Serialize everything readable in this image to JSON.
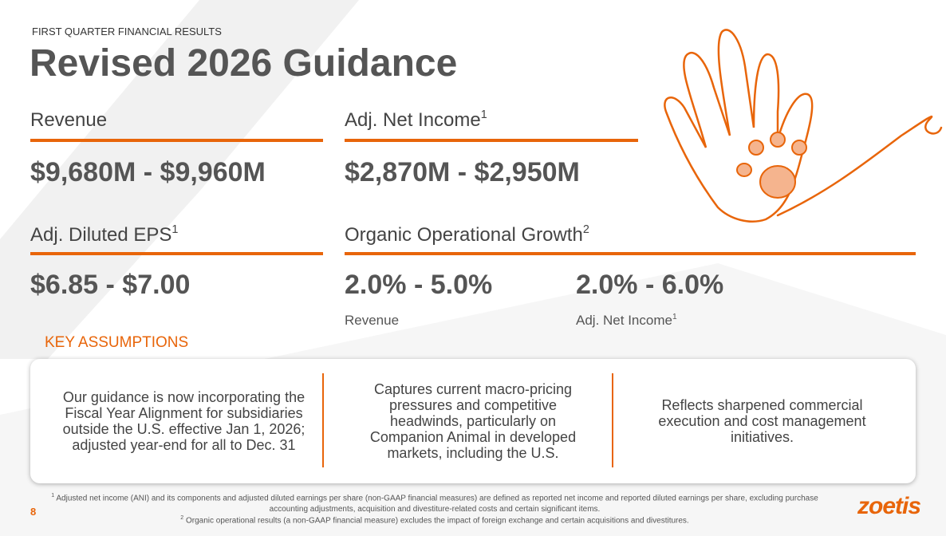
{
  "header": {
    "eyebrow": "FIRST QUARTER FINANCIAL RESULTS",
    "title": "Revised 2026 Guidance"
  },
  "metrics": [
    {
      "label": "Revenue",
      "value": "$9,680M - $9,960M"
    },
    {
      "label": "Adj. Net Income",
      "note": "1",
      "value": "$2,870M - $2,950M"
    },
    {
      "label": "Adj. Diluted EPS",
      "note": "1",
      "value": "$6.85 - $7.00"
    }
  ],
  "growth": {
    "label": "Organic Operational Growth",
    "note": "2",
    "items": [
      {
        "value": "2.0% - 5.0%",
        "label": "Revenue"
      },
      {
        "value": "2.0% - 6.0%",
        "label": "Adj. Net Income",
        "note": "1"
      }
    ]
  },
  "assumptions": {
    "title": "KEY ASSUMPTIONS",
    "items": [
      "Our guidance is now incorporating the Fiscal Year Alignment for subsidiaries outside the U.S. effective Jan 1, 2026; adjusted year-end for all to Dec. 31",
      "Captures current macro-pricing pressures and competitive headwinds, particularly on Companion Animal in developed markets, including the U.S.",
      "Reflects sharpened commercial execution and cost management initiatives."
    ]
  },
  "footnotes": [
    {
      "mark": "1",
      "text": "Adjusted net income (ANI) and its components and adjusted diluted earnings per share (non-GAAP financial measures) are defined as reported net income and reported diluted earnings per share, excluding purchase accounting adjustments, acquisition and divestiture-related costs and certain significant items."
    },
    {
      "mark": "2",
      "text": "Organic operational results (a non-GAAP financial measure) excludes the impact of foreign exchange and certain acquisitions and divestitures."
    }
  ],
  "page_number": "8",
  "logo": "zoetis"
}
